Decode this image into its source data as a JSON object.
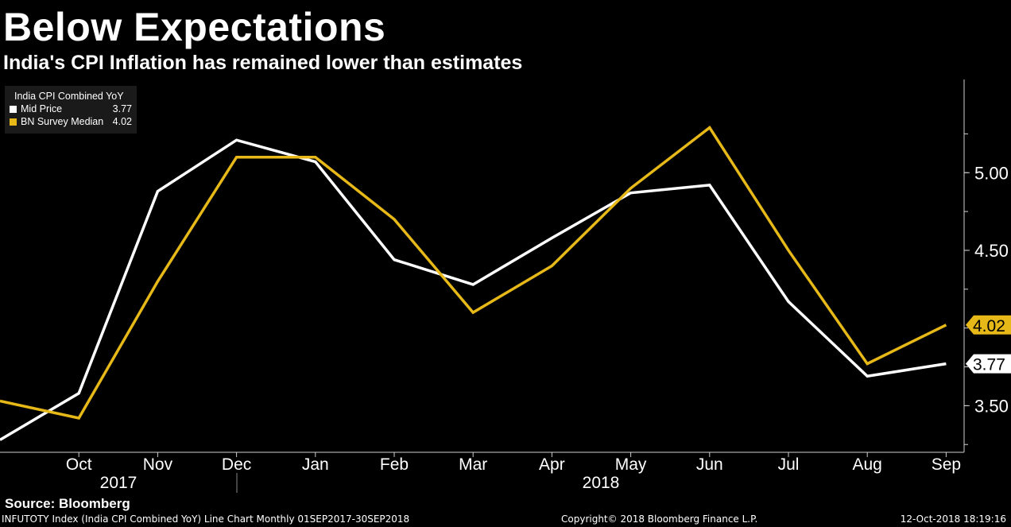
{
  "title": "Below Expectations",
  "subtitle": "India's CPI Inflation has remained lower than estimates",
  "legend": {
    "title": "India CPI Combined YoY",
    "items": [
      {
        "name": "Mid Price",
        "value": "3.77",
        "color": "#ffffff"
      },
      {
        "name": "BN Survey Median",
        "value": "4.02",
        "color": "#e6b818"
      }
    ]
  },
  "source": "Source: Bloomberg",
  "footer": {
    "left": "INFUTOTY Index (India CPI Combined YoY) Line Chart  Monthly 01SEP2017-30SEP2018",
    "center": "Copyright© 2018 Bloomberg Finance L.P.",
    "right": "12-Oct-2018 18:19:16"
  },
  "chart_data": {
    "type": "line",
    "title": "Below Expectations",
    "ylabel": "",
    "xlabel": "",
    "x": [
      "Sep",
      "Oct",
      "Nov",
      "Dec",
      "Jan",
      "Feb",
      "Mar",
      "Apr",
      "May",
      "Jun",
      "Jul",
      "Aug",
      "Sep"
    ],
    "tick_labels": [
      "Oct",
      "Nov",
      "Dec",
      "Jan",
      "Feb",
      "Mar",
      "Apr",
      "May",
      "Jun",
      "Jul",
      "Aug",
      "Sep"
    ],
    "year_labels": [
      "2017",
      "2018"
    ],
    "ylim": [
      3.2,
      5.6
    ],
    "yticks": [
      "5.00",
      "4.50",
      "3.50"
    ],
    "grid": false,
    "series": [
      {
        "name": "Mid Price",
        "color": "#ffffff",
        "values": [
          3.28,
          3.58,
          4.88,
          5.21,
          5.07,
          4.44,
          4.28,
          4.58,
          4.87,
          4.92,
          4.17,
          3.69,
          3.77
        ],
        "last_label": "3.77"
      },
      {
        "name": "BN Survey Median",
        "color": "#e6b818",
        "values": [
          3.53,
          3.42,
          4.3,
          5.1,
          5.1,
          4.7,
          4.1,
          4.4,
          4.9,
          5.29,
          4.5,
          3.77,
          4.02
        ],
        "last_label": "4.02"
      }
    ]
  }
}
